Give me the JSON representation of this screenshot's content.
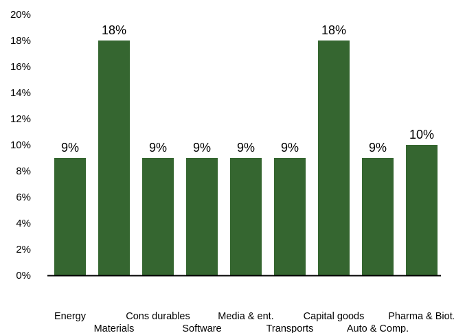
{
  "chart_data": {
    "type": "bar",
    "categories": [
      "Energy",
      "Materials",
      "Cons durables",
      "Software",
      "Media & ent.",
      "Transports",
      "Capital goods",
      "Auto & Comp.",
      "Pharma & Biot."
    ],
    "values": [
      9,
      18,
      9,
      9,
      9,
      9,
      18,
      9,
      10
    ],
    "data_labels": [
      "9%",
      "18%",
      "9%",
      "9%",
      "9%",
      "9%",
      "18%",
      "9%",
      "10%"
    ],
    "y_ticks": [
      "0%",
      "2%",
      "4%",
      "6%",
      "8%",
      "10%",
      "12%",
      "14%",
      "16%",
      "18%",
      "20%"
    ],
    "ylim": [
      0,
      20
    ],
    "grid": false,
    "legend": "none",
    "bar_color": "#356630",
    "title": "",
    "xlabel": "",
    "ylabel": ""
  }
}
